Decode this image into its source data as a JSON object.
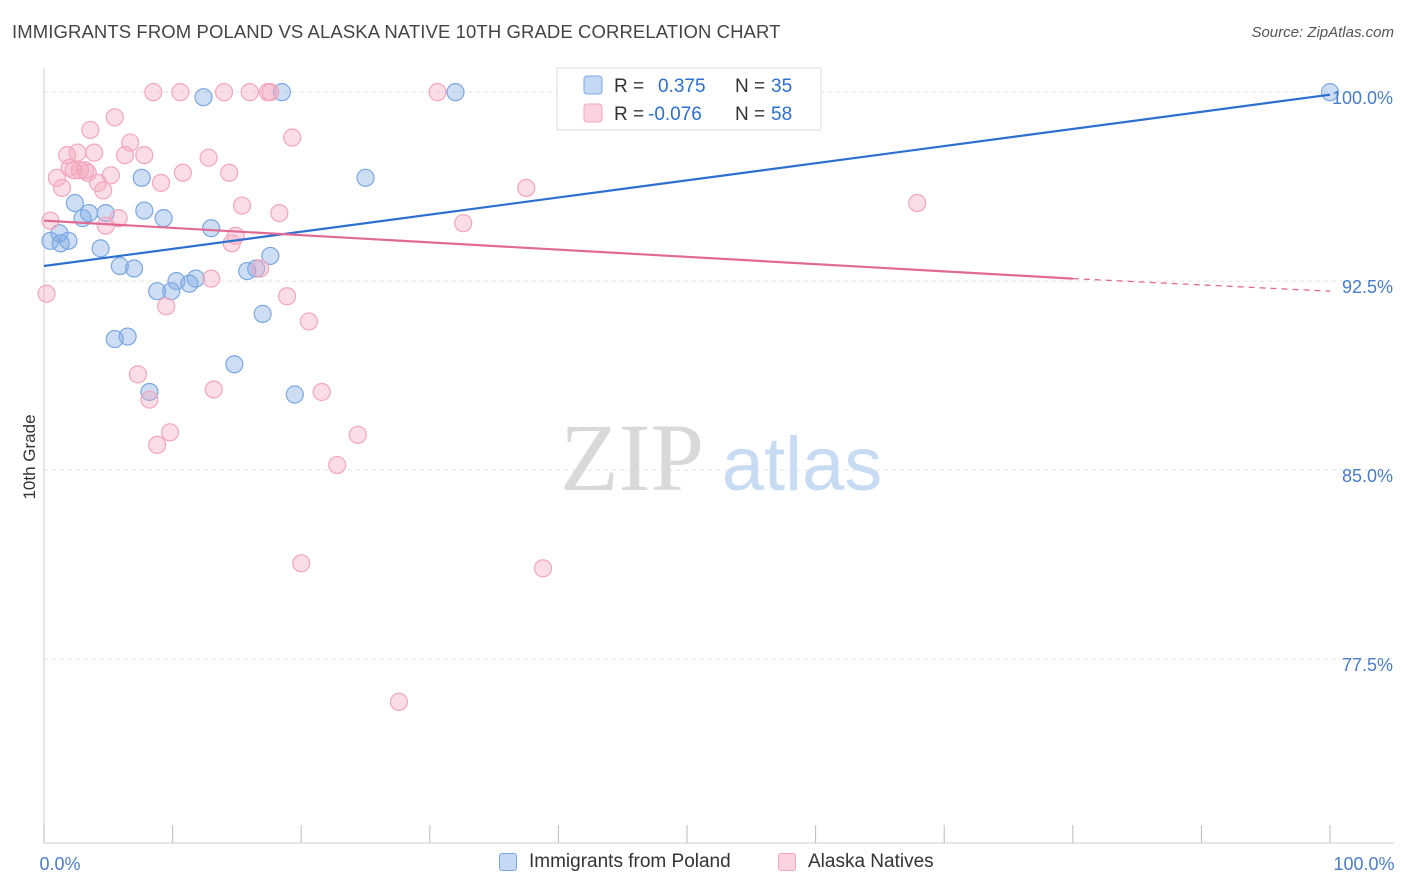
{
  "chart_data": {
    "type": "scatter",
    "title": "IMMIGRANTS FROM POLAND VS ALASKA NATIVE 10TH GRADE CORRELATION CHART",
    "source": "Source: ZipAtlas.com",
    "xlabel": "",
    "ylabel": "10th Grade",
    "xlim": [
      0,
      100
    ],
    "ylim": [
      70.2,
      100.8
    ],
    "x_tick_labels": [
      "0.0%",
      "100.0%"
    ],
    "y_ticks": [
      {
        "value": 100.0,
        "label": "100.0%"
      },
      {
        "value": 92.5,
        "label": "92.5%"
      },
      {
        "value": 85.0,
        "label": "85.0%"
      },
      {
        "value": 77.5,
        "label": "77.5%"
      }
    ],
    "grid": true,
    "watermark": {
      "zip": "ZIP",
      "atlas": "atlas"
    },
    "series": [
      {
        "name": "Immigrants from Poland",
        "color": "#7ba7e2",
        "line_color": "#2d6fcf",
        "r_label": "R =",
        "r_value": "0.375",
        "n_label": "N =",
        "n_value": "35",
        "trend": {
          "x0": 0,
          "y0": 93.1,
          "x1": 100,
          "y1": 99.9
        },
        "points": [
          [
            0.5,
            94.1
          ],
          [
            1.2,
            94.4
          ],
          [
            1.3,
            94.0
          ],
          [
            1.9,
            94.1
          ],
          [
            2.4,
            95.6
          ],
          [
            3.0,
            95.0
          ],
          [
            3.5,
            95.2
          ],
          [
            4.4,
            93.8
          ],
          [
            4.8,
            95.2
          ],
          [
            5.5,
            90.2
          ],
          [
            5.9,
            93.1
          ],
          [
            6.5,
            90.3
          ],
          [
            7.0,
            93.0
          ],
          [
            7.6,
            96.6
          ],
          [
            7.8,
            95.3
          ],
          [
            8.2,
            88.1
          ],
          [
            8.8,
            92.1
          ],
          [
            9.3,
            95.0
          ],
          [
            9.9,
            92.1
          ],
          [
            10.3,
            92.5
          ],
          [
            11.3,
            92.4
          ],
          [
            11.8,
            92.6
          ],
          [
            12.4,
            99.8
          ],
          [
            13.0,
            94.6
          ],
          [
            14.8,
            89.2
          ],
          [
            15.8,
            92.9
          ],
          [
            16.5,
            93.0
          ],
          [
            17.0,
            91.2
          ],
          [
            17.6,
            93.5
          ],
          [
            18.5,
            100.0
          ],
          [
            19.5,
            88.0
          ],
          [
            25.0,
            96.6
          ],
          [
            32.0,
            100.0
          ],
          [
            44.7,
            100.0
          ],
          [
            100.0,
            100.0
          ]
        ]
      },
      {
        "name": "Alaska Natives",
        "color": "#f3a6be",
        "line_color": "#e06a94",
        "r_label": "R =",
        "r_value": "-0.076",
        "n_label": "N =",
        "n_value": "58",
        "trend": {
          "x0": 0,
          "y0": 94.9,
          "x1": 80,
          "y1": 92.6,
          "dash_to_x": 100,
          "dash_to_y": 92.1
        },
        "points": [
          [
            0.2,
            92.0
          ],
          [
            0.5,
            94.9
          ],
          [
            1.0,
            96.6
          ],
          [
            1.4,
            96.2
          ],
          [
            1.8,
            97.5
          ],
          [
            2.0,
            97.0
          ],
          [
            2.3,
            96.9
          ],
          [
            2.6,
            97.6
          ],
          [
            2.8,
            96.9
          ],
          [
            3.2,
            96.9
          ],
          [
            3.4,
            96.8
          ],
          [
            3.6,
            98.5
          ],
          [
            3.9,
            97.6
          ],
          [
            4.2,
            96.4
          ],
          [
            4.6,
            96.1
          ],
          [
            4.8,
            94.7
          ],
          [
            5.2,
            96.7
          ],
          [
            5.5,
            99.0
          ],
          [
            5.8,
            95.0
          ],
          [
            6.3,
            97.5
          ],
          [
            6.7,
            98.0
          ],
          [
            7.3,
            88.8
          ],
          [
            7.8,
            97.5
          ],
          [
            8.2,
            87.8
          ],
          [
            8.5,
            100.0
          ],
          [
            8.8,
            86.0
          ],
          [
            9.1,
            96.4
          ],
          [
            9.5,
            91.5
          ],
          [
            9.8,
            86.5
          ],
          [
            10.6,
            100.0
          ],
          [
            10.8,
            96.8
          ],
          [
            12.8,
            97.4
          ],
          [
            13.0,
            92.6
          ],
          [
            13.2,
            88.2
          ],
          [
            14.0,
            100.0
          ],
          [
            14.4,
            96.8
          ],
          [
            14.6,
            94.0
          ],
          [
            14.9,
            94.3
          ],
          [
            15.4,
            95.5
          ],
          [
            16.0,
            100.0
          ],
          [
            16.8,
            93.0
          ],
          [
            17.4,
            100.0
          ],
          [
            17.6,
            100.0
          ],
          [
            18.3,
            95.2
          ],
          [
            18.9,
            91.9
          ],
          [
            19.3,
            98.2
          ],
          [
            20.0,
            81.3
          ],
          [
            20.6,
            90.9
          ],
          [
            21.6,
            88.1
          ],
          [
            22.8,
            85.2
          ],
          [
            24.4,
            86.4
          ],
          [
            27.6,
            75.8
          ],
          [
            30.6,
            100.0
          ],
          [
            32.6,
            94.8
          ],
          [
            37.5,
            96.2
          ],
          [
            38.8,
            81.1
          ],
          [
            45.3,
            100.0
          ],
          [
            67.9,
            95.6
          ]
        ]
      }
    ]
  }
}
